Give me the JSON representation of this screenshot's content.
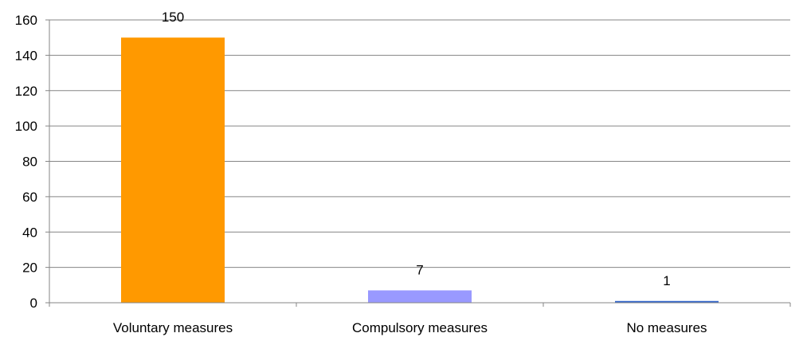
{
  "chart_data": {
    "type": "bar",
    "categories": [
      "Voluntary measures",
      "Compulsory measures",
      "No measures"
    ],
    "values": [
      150,
      7,
      1
    ],
    "data_labels": [
      "150",
      "7",
      "1"
    ],
    "colors": [
      "#FF9900",
      "#9999FF",
      "#3366CC"
    ],
    "title": "",
    "xlabel": "",
    "ylabel": "",
    "ylim": [
      0,
      160
    ],
    "yticks": [
      0,
      20,
      40,
      60,
      80,
      100,
      120,
      140,
      160
    ],
    "grid": true,
    "legend": "none"
  }
}
